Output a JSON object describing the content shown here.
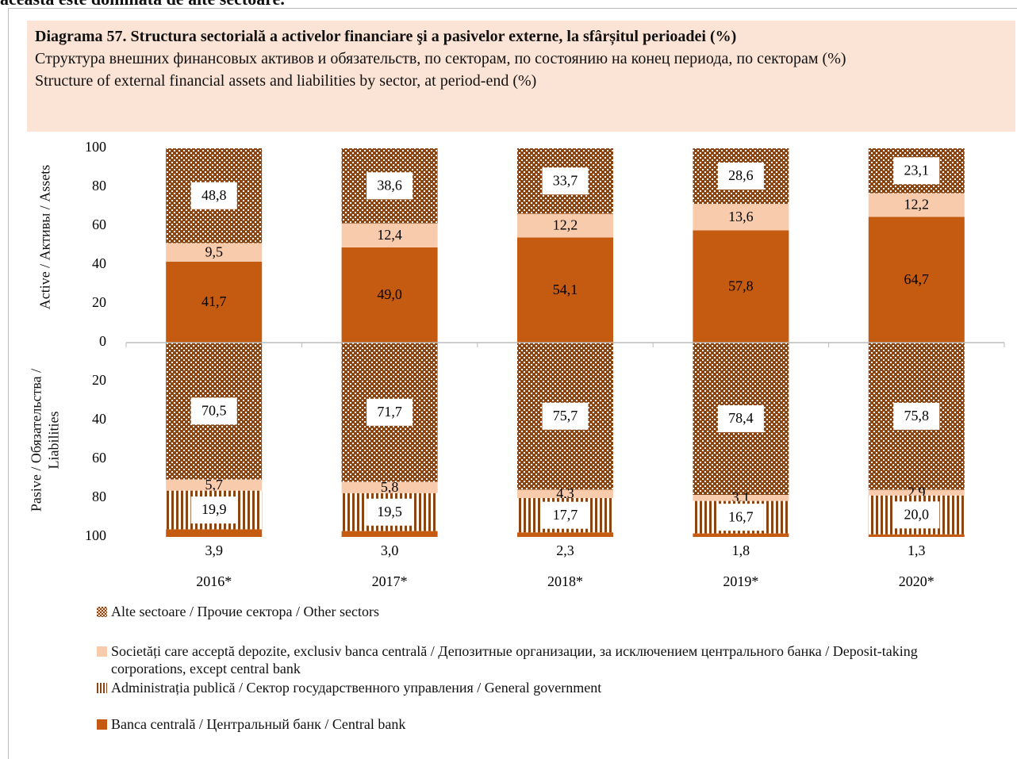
{
  "header_text": "aceasta este dominată de alte sectoare.",
  "chart_data": {
    "type": "bar",
    "title": "Diagrama 57. Structura sectorială a activelor financiare şi a pasivelor externe, la sfârșitul perioadei (%)",
    "subtitle": [
      "Структура внешних финансовых активов и обязательств, по секторам, по состоянию на конец периода, по секторам (%)",
      "Structure of external financial assets and liabilities by sector, at period-end (%)"
    ],
    "categories": [
      "2016*",
      "2017*",
      "2018*",
      "2019*",
      "2020*"
    ],
    "panels": [
      {
        "ylabel": "Active / Активы / Assets",
        "ylim": [
          0,
          100
        ],
        "yticks": [
          0,
          20,
          40,
          60,
          80,
          100
        ],
        "inverted": false,
        "series": [
          {
            "name": "Banca centrală / Центральный банк / Central bank",
            "color": "#c55a11",
            "values": [
              41.7,
              49.0,
              54.1,
              57.8,
              64.7
            ],
            "value_labels": [
              "41,7",
              "49,0",
              "54,1",
              "57,8",
              "64,7"
            ]
          },
          {
            "name": "Societăți care acceptă depozite, exclusiv banca centrală / Депозитные организации, за исключением центрального банка / Deposit-taking corporations, except central bank",
            "color": "#f8cbad",
            "values": [
              9.5,
              12.4,
              12.2,
              13.6,
              12.2
            ],
            "value_labels": [
              "9,5",
              "12,4",
              "12,2",
              "13,6",
              "12,2"
            ]
          },
          {
            "name": "Alte sectoare / Прочие сектора / Other sectors",
            "color": "#8b4513",
            "pattern": "dots",
            "values": [
              48.8,
              38.6,
              33.7,
              28.6,
              23.1
            ],
            "value_labels": [
              "48,8",
              "38,6",
              "33,7",
              "28,6",
              "23,1"
            ]
          }
        ]
      },
      {
        "ylabel": "Pasive / Обязательства / Liabilities",
        "ylim": [
          0,
          100
        ],
        "yticks": [
          20,
          40,
          60,
          80,
          100
        ],
        "inverted": true,
        "series": [
          {
            "name": "Alte sectoare / Прочие сектора / Other sectors",
            "color": "#8b4513",
            "pattern": "dots",
            "values": [
              70.5,
              71.7,
              75.7,
              78.4,
              75.8
            ],
            "value_labels": [
              "70,5",
              "71,7",
              "75,7",
              "78,4",
              "75,8"
            ]
          },
          {
            "name": "Societăți care acceptă depozite, exclusiv banca centrală / Депозитные организации, за исключением центрального банка / Deposit-taking corporations, except central bank",
            "color": "#f8cbad",
            "values": [
              5.7,
              5.8,
              4.3,
              3.1,
              2.9
            ],
            "value_labels": [
              "5,7",
              "5,8",
              "4,3",
              "3,1",
              "2,9"
            ]
          },
          {
            "name": "Administrația publică / Сектор государственного управления / General government",
            "color": "#8b4513",
            "pattern": "stripes",
            "values": [
              19.9,
              19.5,
              17.7,
              16.7,
              20.0
            ],
            "value_labels": [
              "19,9",
              "19,5",
              "17,7",
              "16,7",
              "20,0"
            ]
          },
          {
            "name": "Banca centrală / Центральный банк / Central bank",
            "color": "#c55a11",
            "values": [
              3.9,
              3.0,
              2.3,
              1.8,
              1.3
            ],
            "value_labels": [
              "3,9",
              "3,0",
              "2,3",
              "1,8",
              "1,3"
            ]
          }
        ]
      }
    ]
  }
}
